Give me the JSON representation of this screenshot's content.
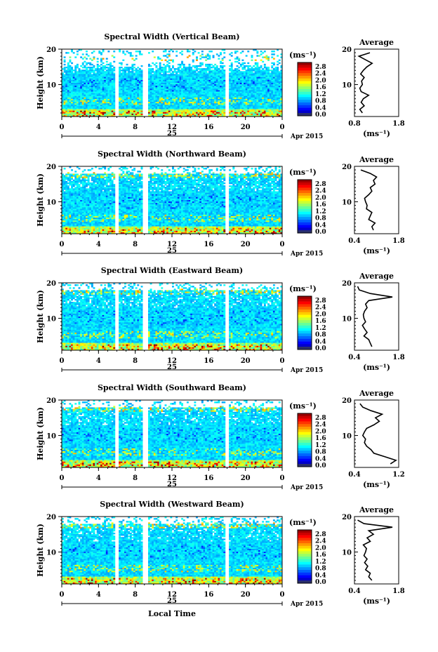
{
  "chart_data": [
    {
      "type": "heatmap",
      "title": "Spectral Width (Vertical Beam)",
      "ylabel": "Height (km)",
      "yticks": [
        "20",
        "10"
      ],
      "xticks": [
        "0",
        "4",
        "8",
        "12",
        "16",
        "20",
        "0"
      ],
      "day_label": "25",
      "month_label": "Apr 2015",
      "colorbar_unit": "(ms⁻¹)",
      "colorbar_ticks": [
        "2.8",
        "2.4",
        "2.0",
        "1.6",
        "1.2",
        "0.8",
        "0.4",
        "0.0"
      ],
      "gaps_hours": [
        [
          5.8,
          6.2
        ],
        [
          8.9,
          9.3
        ],
        [
          17.9,
          18.2
        ]
      ],
      "clear_above_km": [
        14,
        16
      ],
      "avg_profile": {
        "title": "Average",
        "yticks": [
          "20",
          "10"
        ],
        "xtick_labels": [
          "0.8",
          "1.8"
        ],
        "xlim": [
          0.8,
          1.8
        ],
        "xlabel": "(ms⁻¹)",
        "height_km": [
          2,
          3,
          4,
          5,
          6,
          7,
          8,
          9,
          10,
          11,
          12,
          13,
          14,
          15,
          16,
          17,
          18,
          19
        ],
        "width": [
          0.98,
          0.92,
          1.02,
          0.95,
          1.0,
          1.12,
          0.95,
          0.92,
          0.98,
          0.96,
          1.02,
          0.94,
          1.0,
          1.08,
          1.2,
          1.05,
          0.9,
          1.15
        ]
      }
    },
    {
      "type": "heatmap",
      "title": "Spectral Width (Northward Beam)",
      "ylabel": "Height (km)",
      "yticks": [
        "20",
        "10"
      ],
      "xticks": [
        "0",
        "4",
        "8",
        "12",
        "16",
        "20",
        "0"
      ],
      "day_label": "25",
      "month_label": "Apr 2015",
      "colorbar_unit": "(ms⁻¹)",
      "colorbar_ticks": [
        "2.8",
        "2.4",
        "2.0",
        "1.6",
        "1.2",
        "0.8",
        "0.4",
        "0.0"
      ],
      "gaps_hours": [
        [
          5.8,
          6.2
        ],
        [
          8.9,
          9.3
        ],
        [
          17.9,
          18.2
        ]
      ],
      "clear_above_km": [
        18,
        18
      ],
      "avg_profile": {
        "title": "Average",
        "yticks": [
          "20",
          "10"
        ],
        "xtick_labels": [
          "0.4",
          "1.8"
        ],
        "xlim": [
          0.4,
          1.8
        ],
        "xlabel": "(ms⁻¹)",
        "height_km": [
          2,
          3,
          4,
          5,
          6,
          7,
          8,
          9,
          10,
          11,
          12,
          13,
          14,
          15,
          16,
          17,
          18,
          19
        ],
        "width": [
          1.0,
          0.95,
          1.05,
          0.85,
          0.9,
          0.95,
          0.78,
          0.8,
          0.75,
          0.72,
          0.85,
          0.95,
          0.9,
          1.05,
          1.0,
          1.1,
          0.9,
          0.6
        ]
      }
    },
    {
      "type": "heatmap",
      "title": "Spectral Width (Eastward Beam)",
      "ylabel": "Height (km)",
      "yticks": [
        "20",
        "10"
      ],
      "xticks": [
        "0",
        "4",
        "8",
        "12",
        "16",
        "20",
        "0"
      ],
      "day_label": "25",
      "month_label": "Apr 2015",
      "colorbar_unit": "(ms⁻¹)",
      "colorbar_ticks": [
        "2.8",
        "2.4",
        "2.0",
        "1.6",
        "1.2",
        "0.8",
        "0.4",
        "0.0"
      ],
      "gaps_hours": [
        [
          5.8,
          6.2
        ],
        [
          8.9,
          9.3
        ],
        [
          17.9,
          18.2
        ]
      ],
      "clear_above_km": [
        18,
        18
      ],
      "avg_profile": {
        "title": "Average",
        "yticks": [
          "20",
          "10"
        ],
        "xtick_labels": [
          "0.4",
          "1.8"
        ],
        "xlim": [
          0.4,
          1.8
        ],
        "xlabel": "(ms⁻¹)",
        "height_km": [
          2,
          3,
          4,
          5,
          6,
          7,
          8,
          9,
          10,
          11,
          12,
          13,
          14,
          15,
          16,
          17,
          18,
          19
        ],
        "width": [
          0.95,
          0.9,
          0.85,
          0.7,
          0.8,
          0.72,
          0.65,
          0.75,
          0.7,
          0.68,
          0.72,
          0.8,
          0.75,
          0.85,
          1.6,
          0.9,
          0.55,
          0.5
        ]
      }
    },
    {
      "type": "heatmap",
      "title": "Spectral Width (Southward Beam)",
      "ylabel": "Height (km)",
      "yticks": [
        "20",
        "10"
      ],
      "xticks": [
        "0",
        "4",
        "8",
        "12",
        "16",
        "20",
        "0"
      ],
      "day_label": "25",
      "month_label": "Apr 2015",
      "colorbar_unit": "(ms⁻¹)",
      "colorbar_ticks": [
        "2.8",
        "2.4",
        "2.0",
        "1.6",
        "1.2",
        "0.8",
        "0.4",
        "0.0"
      ],
      "gaps_hours": [
        [
          5.8,
          6.2
        ],
        [
          8.9,
          9.3
        ],
        [
          17.9,
          18.2
        ]
      ],
      "clear_above_km": [
        18,
        18
      ],
      "avg_profile": {
        "title": "Average",
        "yticks": [
          "20",
          "10"
        ],
        "xtick_labels": [
          "0.4",
          "1.2"
        ],
        "xlim": [
          0.4,
          1.2
        ],
        "xlabel": "(ms⁻¹)",
        "height_km": [
          2,
          3,
          4,
          5,
          6,
          7,
          8,
          9,
          10,
          11,
          12,
          13,
          14,
          15,
          16,
          17,
          18,
          19
        ],
        "width": [
          1.05,
          1.15,
          0.95,
          0.75,
          0.7,
          0.62,
          0.58,
          0.6,
          0.55,
          0.58,
          0.62,
          0.75,
          0.85,
          0.78,
          0.9,
          0.7,
          0.55,
          0.5
        ]
      }
    },
    {
      "type": "heatmap",
      "title": "Spectral Width (Westward Beam)",
      "ylabel": "Height (km)",
      "yticks": [
        "20",
        "10"
      ],
      "xticks": [
        "0",
        "4",
        "8",
        "12",
        "16",
        "20",
        "0"
      ],
      "day_label": "25",
      "month_label": "Apr 2015",
      "xlabel": "Local Time",
      "colorbar_unit": "(ms⁻¹)",
      "colorbar_ticks": [
        "2.8",
        "2.4",
        "2.0",
        "1.6",
        "1.2",
        "0.8",
        "0.4",
        "0.0"
      ],
      "gaps_hours": [
        [
          5.8,
          6.2
        ],
        [
          8.9,
          9.3
        ],
        [
          17.9,
          18.2
        ]
      ],
      "clear_above_km": [
        18,
        18
      ],
      "avg_profile": {
        "title": "Average",
        "yticks": [
          "20",
          "10"
        ],
        "xtick_labels": [
          "0.4",
          "1.8"
        ],
        "xlim": [
          0.4,
          1.8
        ],
        "xlabel": "(ms⁻¹)",
        "height_km": [
          2,
          3,
          4,
          5,
          6,
          7,
          8,
          9,
          10,
          11,
          12,
          13,
          14,
          15,
          16,
          17,
          18,
          19
        ],
        "width": [
          0.95,
          0.85,
          0.9,
          0.75,
          0.82,
          0.72,
          0.8,
          0.7,
          0.75,
          0.78,
          0.68,
          0.9,
          0.8,
          1.0,
          0.85,
          1.6,
          0.7,
          0.5
        ]
      }
    }
  ]
}
